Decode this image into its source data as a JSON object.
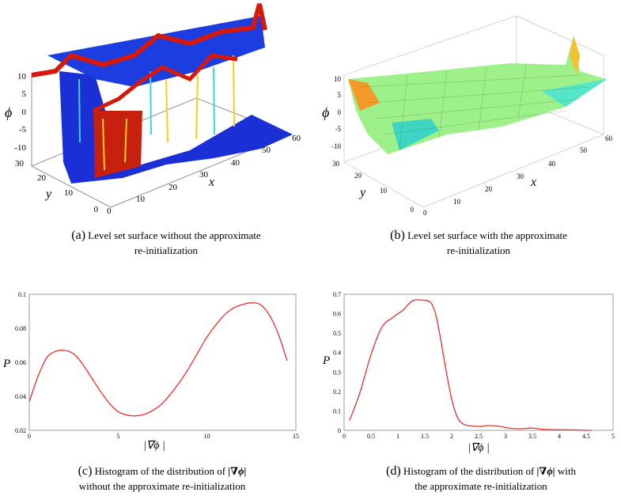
{
  "surfaces": {
    "a": {
      "z_label": "ϕ",
      "y_label": "y",
      "x_label": "x",
      "z_ticks": [
        "10",
        "5",
        "0",
        "-5",
        "-10"
      ],
      "y_ticks": [
        "30",
        "20",
        "10",
        "0"
      ],
      "x_ticks": [
        "0",
        "10",
        "20",
        "30",
        "40",
        "50",
        "60"
      ],
      "caption_tag": "(a)",
      "caption_line1": "Level set surface without the approximate",
      "caption_line2": "re-initialization"
    },
    "b": {
      "z_label": "ϕ",
      "y_label": "y",
      "x_label": "x",
      "z_ticks": [
        "10",
        "5",
        "0",
        "-5",
        "-10"
      ],
      "y_ticks": [
        "30",
        "20",
        "10",
        "0"
      ],
      "x_ticks": [
        "0",
        "10",
        "20",
        "30",
        "40",
        "50",
        "60"
      ],
      "caption_tag": "(b)",
      "caption_line1": "Level set surface with the approximate",
      "caption_line2": "re-initialization"
    }
  },
  "chart_data": [
    {
      "type": "line",
      "panel": "c",
      "xlabel": "|∇ϕ |",
      "ylabel": "P",
      "xlim": [
        0,
        15
      ],
      "ylim": [
        0.02,
        0.1
      ],
      "xticks": [
        "0",
        "5",
        "10",
        "15"
      ],
      "yticks": [
        "0.1",
        "0.08",
        "0.06",
        "0.04",
        "0.02"
      ],
      "color": "#e8302b",
      "x": [
        0,
        0.5,
        1,
        1.5,
        2,
        2.5,
        3,
        3.5,
        4,
        4.5,
        5,
        5.5,
        6,
        6.5,
        7,
        7.5,
        8,
        8.5,
        9,
        9.5,
        10,
        10.5,
        11,
        11.5,
        12,
        12.5,
        13,
        13.5,
        14,
        14.5
      ],
      "y": [
        0.037,
        0.052,
        0.063,
        0.0665,
        0.067,
        0.065,
        0.059,
        0.051,
        0.043,
        0.036,
        0.031,
        0.029,
        0.0285,
        0.0295,
        0.032,
        0.036,
        0.042,
        0.049,
        0.057,
        0.066,
        0.075,
        0.082,
        0.088,
        0.092,
        0.094,
        0.095,
        0.094,
        0.088,
        0.077,
        0.061
      ],
      "caption_tag": "(c)",
      "caption_line1": "Histogram of the distribution of",
      "caption_math": "|∇ϕ|",
      "caption_line2": "without the approximate re-initialization"
    },
    {
      "type": "line",
      "panel": "d",
      "xlabel": "|∇ϕ |",
      "ylabel": "P",
      "xlim": [
        0,
        5
      ],
      "ylim": [
        0,
        0.7
      ],
      "xticks": [
        "0",
        "0.5",
        "1",
        "1.5",
        "2",
        "2.5",
        "3",
        "3.5",
        "4",
        "4.5",
        "5"
      ],
      "yticks": [
        "0.7",
        "0.6",
        "0.5",
        "0.4",
        "0.3",
        "0.2",
        "0.1",
        "0"
      ],
      "color": "#e8302b",
      "x": [
        0.1,
        0.3,
        0.5,
        0.7,
        0.9,
        1.1,
        1.2,
        1.3,
        1.45,
        1.6,
        1.7,
        1.8,
        1.9,
        2.0,
        2.1,
        2.2,
        2.3,
        2.5,
        2.7,
        2.9,
        3.1,
        3.3,
        3.5,
        3.7,
        4.0,
        4.3,
        4.6
      ],
      "y": [
        0.05,
        0.2,
        0.39,
        0.53,
        0.58,
        0.62,
        0.65,
        0.67,
        0.67,
        0.66,
        0.6,
        0.46,
        0.3,
        0.16,
        0.07,
        0.035,
        0.025,
        0.02,
        0.025,
        0.02,
        0.01,
        0.008,
        0.012,
        0.005,
        0.003,
        0.002,
        0.0
      ],
      "caption_tag": "(d)",
      "caption_line1": "Histogram of the distribution of",
      "caption_math": "|∇ϕ|",
      "caption_after": "with",
      "caption_line2": "the approximate re-initialization"
    }
  ]
}
